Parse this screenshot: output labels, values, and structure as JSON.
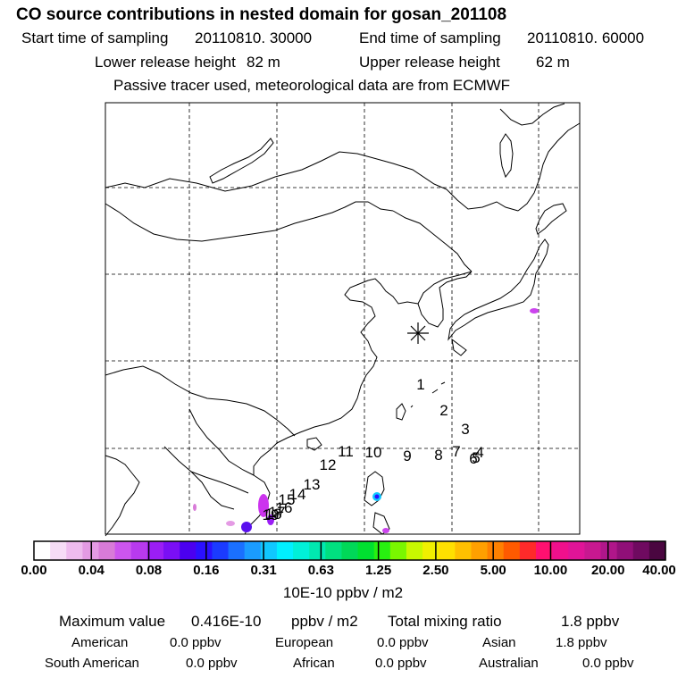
{
  "header": {
    "title": "CO  source contributions in nested domain for gosan_201108",
    "start_label": "Start time of sampling",
    "start_value": "20110810. 30000",
    "end_label": "End time of sampling",
    "end_value": "20110810. 60000",
    "lower_label": "Lower release height",
    "lower_value": "82 m",
    "upper_label": "Upper release height",
    "upper_value": "62 m",
    "tracer_note": "Passive tracer used, meteorological data are from ECMWF"
  },
  "chart_data": {
    "type": "heatmap",
    "title": "CO  source contributions in nested domain for gosan_201108",
    "receptor_marker": "asterisk",
    "trajectory_labels": [
      "1",
      "2",
      "3",
      "4",
      "5",
      "6",
      "7",
      "8",
      "9",
      "10",
      "11",
      "12",
      "13",
      "14",
      "15",
      "16",
      "17",
      "18",
      "19"
    ],
    "colorbar": {
      "tick_labels": [
        "0.00",
        "0.04",
        "0.08",
        "0.16",
        "0.31",
        "0.63",
        "1.25",
        "2.50",
        "5.00",
        "10.00",
        "20.00",
        "40.00"
      ],
      "colors": [
        "#ffffff",
        "#f6dcf6",
        "#eebbee",
        "#e49be4",
        "#d87bd8",
        "#cc55ee",
        "#b83aee",
        "#9b1ef5",
        "#7a0ff5",
        "#4b00f0",
        "#2b10ff",
        "#1b3bff",
        "#1a70ff",
        "#1a9cff",
        "#10c8ff",
        "#00f0ff",
        "#00f0d8",
        "#00e8b0",
        "#00e080",
        "#00d858",
        "#00e030",
        "#28f010",
        "#7af700",
        "#c8f800",
        "#f0f000",
        "#ffe000",
        "#ffc000",
        "#ffa000",
        "#ff8000",
        "#ff5a00",
        "#ff2a2a",
        "#ff1070",
        "#f0108c",
        "#e01498",
        "#c81890",
        "#b0168a",
        "#900f78",
        "#6f0a60",
        "#4a0640"
      ],
      "unit": "10E-10 ppbv / m2"
    }
  },
  "summary": {
    "max_label": "Maximum value",
    "max_value": "0.416E-10",
    "max_unit": "ppbv / m2",
    "total_label": "Total mixing ratio",
    "total_value": "1.8 ppbv",
    "regions": [
      {
        "name": "American",
        "value": "0.0 ppbv"
      },
      {
        "name": "European",
        "value": "0.0 ppbv"
      },
      {
        "name": "Asian",
        "value": "1.8 ppbv"
      },
      {
        "name": "South American",
        "value": "0.0 ppbv"
      },
      {
        "name": "African",
        "value": "0.0 ppbv"
      },
      {
        "name": "Australian",
        "value": "0.0 ppbv"
      }
    ]
  }
}
